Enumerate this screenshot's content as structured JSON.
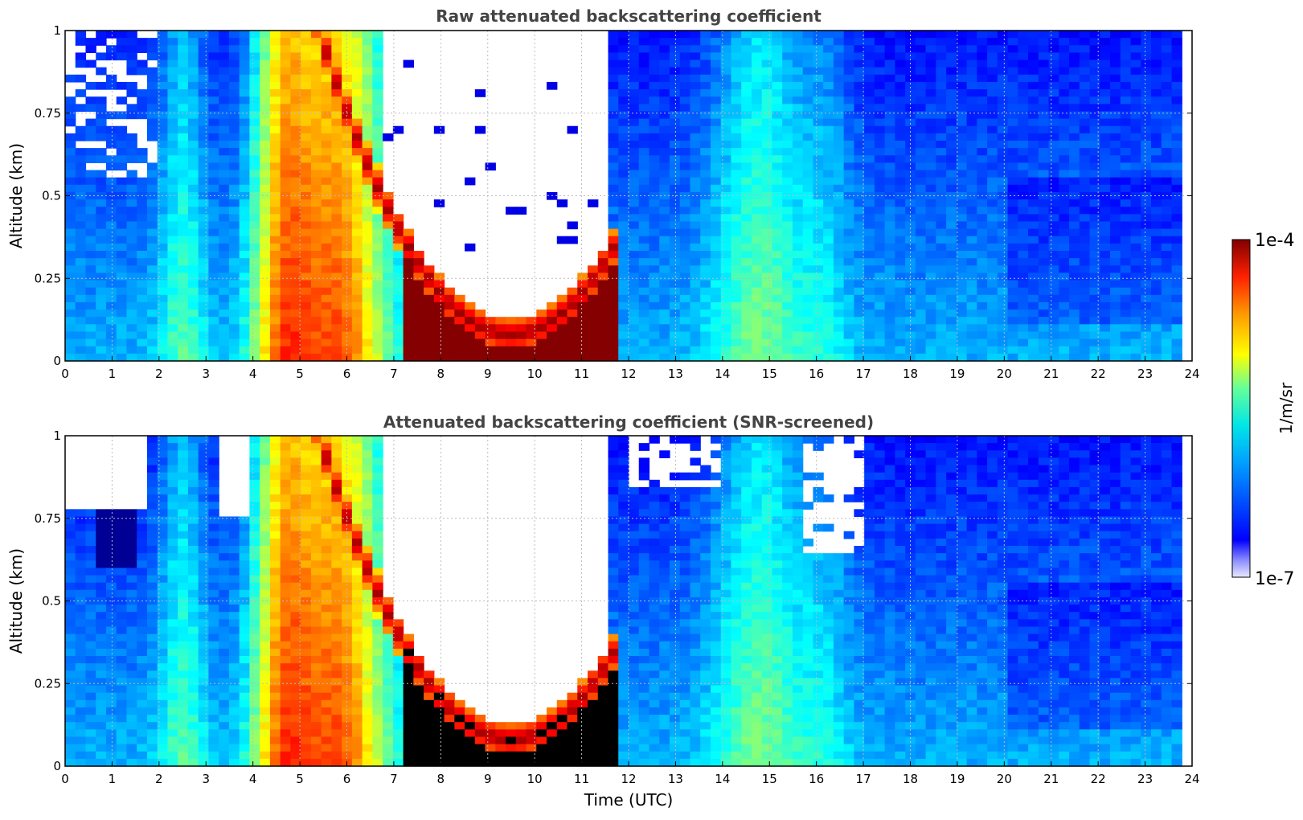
{
  "chart_data": [
    {
      "type": "heatmap",
      "title": "Raw attenuated backscattering coefficient",
      "xlabel": "",
      "ylabel": "Altitude (km)",
      "xlim": [
        0,
        24
      ],
      "ylim": [
        0,
        1
      ],
      "xticks": [
        0,
        1,
        2,
        3,
        4,
        5,
        6,
        7,
        8,
        9,
        10,
        11,
        12,
        13,
        14,
        15,
        16,
        17,
        18,
        19,
        20,
        21,
        22,
        23,
        24
      ],
      "yticks": [
        {
          "v": 0,
          "t": "0"
        },
        {
          "v": 0.25,
          "t": "0.25"
        },
        {
          "v": 0.5,
          "t": "0.5"
        },
        {
          "v": 0.75,
          "t": "0.75"
        },
        {
          "v": 1,
          "t": "1"
        }
      ],
      "grid": true
    },
    {
      "type": "heatmap",
      "title": "Attenuated backscattering coefficient (SNR-screened)",
      "xlabel": "Time (UTC)",
      "ylabel": "Altitude (km)",
      "xlim": [
        0,
        24
      ],
      "ylim": [
        0,
        1
      ],
      "xticks": [
        0,
        1,
        2,
        3,
        4,
        5,
        6,
        7,
        8,
        9,
        10,
        11,
        12,
        13,
        14,
        15,
        16,
        17,
        18,
        19,
        20,
        21,
        22,
        23,
        24
      ],
      "yticks": [
        {
          "v": 0,
          "t": "0"
        },
        {
          "v": 0.25,
          "t": "0.25"
        },
        {
          "v": 0.5,
          "t": "0.5"
        },
        {
          "v": 0.75,
          "t": "0.75"
        },
        {
          "v": 1,
          "t": "1"
        }
      ],
      "grid": true
    }
  ],
  "colorbar": {
    "min_label": "1e-7",
    "max_label": "1e-4",
    "unit": "1/m/sr",
    "scale": "log",
    "colormap": "jet"
  }
}
